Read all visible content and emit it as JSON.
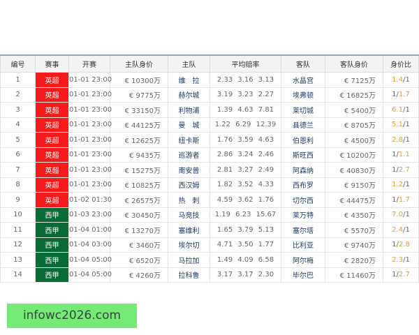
{
  "headers": [
    "编号",
    "赛事",
    "开赛",
    "主队身价",
    "主队",
    "平均赔率",
    "客队",
    "客队身价",
    "身价比"
  ],
  "league_colors": {
    "英超": "#f41b1b",
    "西甲": "#086a34"
  },
  "highlight_color": "#d9a04a",
  "rows": [
    {
      "no": "1",
      "league": "英超",
      "time": "01-01 23:00",
      "home_value": "€ 10300万",
      "home": "维　拉",
      "odds": "2.33 3.16 3.13",
      "away": "水晶宫",
      "away_value": "€ 7125万",
      "ratio": "1.4/1"
    },
    {
      "no": "2",
      "league": "英超",
      "time": "01-01 23:00",
      "home_value": "€ 9775万",
      "home": "赫尔城",
      "odds": "3.19 3.23 2.27",
      "away": "埃弗顿",
      "away_value": "€ 16825万",
      "ratio": "1/1.7"
    },
    {
      "no": "3",
      "league": "英超",
      "time": "01-01 23:00",
      "home_value": "€ 33150万",
      "home": "利物浦",
      "odds": "1.39 4.63 7.81",
      "away": "莱切城",
      "away_value": "€ 5400万",
      "ratio": "6.1/1"
    },
    {
      "no": "4",
      "league": "英超",
      "time": "01-01 23:00",
      "home_value": "€ 44125万",
      "home": "曼　城",
      "odds": "1.22 6.29 12.39",
      "away": "县德兰",
      "away_value": "€ 8705万",
      "ratio": "5.1/1"
    },
    {
      "no": "5",
      "league": "英超",
      "time": "01-01 23:00",
      "home_value": "€ 12625万",
      "home": "纽卡斯",
      "odds": "1.76 3.59 4.63",
      "away": "伯恩利",
      "away_value": "€ 4500万",
      "ratio": "2.8/1"
    },
    {
      "no": "6",
      "league": "英超",
      "time": "01-01 23:00",
      "home_value": "€ 9435万",
      "home": "巡游者",
      "odds": "2.86 3.24 2.46",
      "away": "斯旺西",
      "away_value": "€ 10200万",
      "ratio": "1/1.1"
    },
    {
      "no": "7",
      "league": "英超",
      "time": "01-01 23:00",
      "home_value": "€ 15275万",
      "home": "南安普",
      "odds": "2.81 3.27 2.49",
      "away": "阿森纳",
      "away_value": "€ 40830万",
      "ratio": "1/2.7"
    },
    {
      "no": "8",
      "league": "英超",
      "time": "01-01 23:00",
      "home_value": "€ 10825万",
      "home": "西汉姆",
      "odds": "1.82 3.52 4.33",
      "away": "西布罗",
      "away_value": "€ 9150万",
      "ratio": "1.2/1"
    },
    {
      "no": "9",
      "league": "英超",
      "time": "01-02 01:30",
      "home_value": "€ 26575万",
      "home": "热　刺",
      "odds": "4.59 3.62 1.76",
      "away": "切尔西",
      "away_value": "€ 44475万",
      "ratio": "1/1.7"
    },
    {
      "no": "10",
      "league": "西甲",
      "time": "01-03 23:00",
      "home_value": "€ 30450万",
      "home": "马竞技",
      "odds": "1.19 6.23 15.67",
      "away": "莱万特",
      "away_value": "€ 4350万",
      "ratio": "7.0/1"
    },
    {
      "no": "11",
      "league": "西甲",
      "time": "01-04 01:00",
      "home_value": "€ 13270万",
      "home": "塞维利",
      "odds": "1.65 3.79 5.13",
      "away": "塞尔塔",
      "away_value": "€ 5570万",
      "ratio": "2.4/1"
    },
    {
      "no": "12",
      "league": "西甲",
      "time": "01-04 03:00",
      "home_value": "€ 3460万",
      "home": "埃尔切",
      "odds": "4.71 3.50 1.77",
      "away": "比利亚",
      "away_value": "€ 9740万",
      "ratio": "1/2.8"
    },
    {
      "no": "13",
      "league": "西甲",
      "time": "01-04 05:00",
      "home_value": "€ 6520万",
      "home": "马拉加",
      "odds": "1.49 4.09 6.58",
      "away": "阿尔梅",
      "away_value": "€ 2820万",
      "ratio": "2.3/1"
    },
    {
      "no": "14",
      "league": "西甲",
      "time": "01-04 05:00",
      "home_value": "€ 4260万",
      "home": "拉科鲁",
      "odds": "3.17 3.17 2.30",
      "away": "毕尔巴",
      "away_value": "€ 11460万",
      "ratio": "1/2.7"
    }
  ],
  "banner": "infowc2026.com"
}
